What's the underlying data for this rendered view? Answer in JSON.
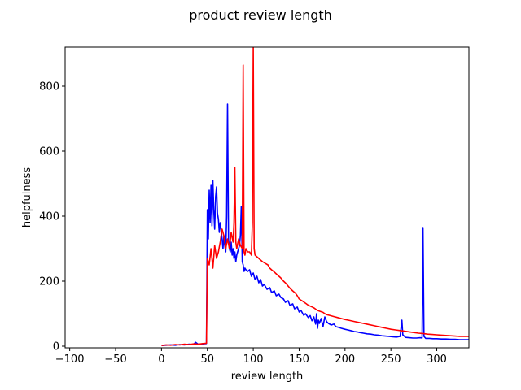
{
  "chart_data": {
    "type": "line",
    "title": "product review length",
    "xlabel": "review length",
    "ylabel": "helpfulness",
    "xlim": [
      -105,
      335
    ],
    "ylim": [
      -5,
      920
    ],
    "xticks": [
      -100,
      -50,
      0,
      50,
      100,
      150,
      200,
      250,
      300
    ],
    "yticks": [
      0,
      200,
      400,
      600,
      800
    ],
    "grid": false,
    "series": [
      {
        "color": "#0000ff",
        "points": [
          [
            0,
            2
          ],
          [
            5,
            3
          ],
          [
            10,
            4
          ],
          [
            15,
            3
          ],
          [
            20,
            5
          ],
          [
            25,
            4
          ],
          [
            30,
            6
          ],
          [
            35,
            5
          ],
          [
            37,
            12
          ],
          [
            40,
            6
          ],
          [
            45,
            7
          ],
          [
            49,
            8
          ],
          [
            50,
            420
          ],
          [
            51,
            330
          ],
          [
            52,
            480
          ],
          [
            53,
            380
          ],
          [
            54,
            495
          ],
          [
            55,
            370
          ],
          [
            56,
            510
          ],
          [
            57,
            420
          ],
          [
            58,
            360
          ],
          [
            59,
            460
          ],
          [
            60,
            490
          ],
          [
            61,
            410
          ],
          [
            62,
            390
          ],
          [
            63,
            350
          ],
          [
            64,
            380
          ],
          [
            65,
            360
          ],
          [
            66,
            330
          ],
          [
            67,
            300
          ],
          [
            68,
            340
          ],
          [
            69,
            310
          ],
          [
            70,
            290
          ],
          [
            71,
            400
          ],
          [
            72,
            745
          ],
          [
            73,
            330
          ],
          [
            74,
            300
          ],
          [
            75,
            290
          ],
          [
            76,
            320
          ],
          [
            77,
            280
          ],
          [
            78,
            300
          ],
          [
            79,
            270
          ],
          [
            80,
            290
          ],
          [
            81,
            260
          ],
          [
            82,
            280
          ],
          [
            83,
            290
          ],
          [
            84,
            300
          ],
          [
            85,
            310
          ],
          [
            86,
            340
          ],
          [
            87,
            430
          ],
          [
            88,
            260
          ],
          [
            89,
            250
          ],
          [
            90,
            230
          ],
          [
            91,
            240
          ],
          [
            92,
            235
          ],
          [
            94,
            230
          ],
          [
            96,
            235
          ],
          [
            98,
            215
          ],
          [
            100,
            225
          ],
          [
            102,
            205
          ],
          [
            104,
            215
          ],
          [
            106,
            195
          ],
          [
            108,
            205
          ],
          [
            110,
            185
          ],
          [
            112,
            190
          ],
          [
            115,
            175
          ],
          [
            118,
            180
          ],
          [
            120,
            165
          ],
          [
            123,
            170
          ],
          [
            125,
            155
          ],
          [
            128,
            160
          ],
          [
            130,
            150
          ],
          [
            133,
            145
          ],
          [
            135,
            135
          ],
          [
            138,
            140
          ],
          [
            140,
            125
          ],
          [
            143,
            130
          ],
          [
            145,
            115
          ],
          [
            148,
            120
          ],
          [
            150,
            105
          ],
          [
            152,
            110
          ],
          [
            155,
            95
          ],
          [
            157,
            100
          ],
          [
            160,
            88
          ],
          [
            162,
            94
          ],
          [
            164,
            78
          ],
          [
            166,
            90
          ],
          [
            168,
            68
          ],
          [
            169,
            100
          ],
          [
            170,
            55
          ],
          [
            171,
            80
          ],
          [
            172,
            70
          ],
          [
            174,
            85
          ],
          [
            176,
            60
          ],
          [
            178,
            90
          ],
          [
            180,
            75
          ],
          [
            182,
            70
          ],
          [
            185,
            65
          ],
          [
            188,
            68
          ],
          [
            190,
            60
          ],
          [
            193,
            58
          ],
          [
            196,
            55
          ],
          [
            200,
            52
          ],
          [
            203,
            50
          ],
          [
            206,
            48
          ],
          [
            210,
            45
          ],
          [
            213,
            44
          ],
          [
            216,
            42
          ],
          [
            220,
            40
          ],
          [
            224,
            38
          ],
          [
            228,
            37
          ],
          [
            232,
            35
          ],
          [
            236,
            34
          ],
          [
            240,
            32
          ],
          [
            244,
            31
          ],
          [
            248,
            30
          ],
          [
            252,
            29
          ],
          [
            256,
            28
          ],
          [
            260,
            30
          ],
          [
            262,
            80
          ],
          [
            263,
            35
          ],
          [
            266,
            27
          ],
          [
            270,
            26
          ],
          [
            274,
            25
          ],
          [
            278,
            25
          ],
          [
            282,
            26
          ],
          [
            284,
            25
          ],
          [
            285,
            365
          ],
          [
            286,
            30
          ],
          [
            288,
            24
          ],
          [
            292,
            24
          ],
          [
            296,
            23
          ],
          [
            300,
            23
          ],
          [
            305,
            22
          ],
          [
            310,
            22
          ],
          [
            315,
            21
          ],
          [
            320,
            21
          ],
          [
            325,
            20
          ],
          [
            330,
            20
          ],
          [
            335,
            20
          ]
        ]
      },
      {
        "color": "#ff0000",
        "points": [
          [
            0,
            2
          ],
          [
            5,
            4
          ],
          [
            10,
            3
          ],
          [
            15,
            5
          ],
          [
            20,
            4
          ],
          [
            25,
            6
          ],
          [
            30,
            5
          ],
          [
            35,
            7
          ],
          [
            40,
            6
          ],
          [
            45,
            8
          ],
          [
            49,
            9
          ],
          [
            50,
            270
          ],
          [
            52,
            250
          ],
          [
            54,
            300
          ],
          [
            56,
            240
          ],
          [
            58,
            310
          ],
          [
            60,
            270
          ],
          [
            62,
            290
          ],
          [
            64,
            320
          ],
          [
            66,
            360
          ],
          [
            68,
            340
          ],
          [
            70,
            300
          ],
          [
            72,
            330
          ],
          [
            74,
            300
          ],
          [
            76,
            350
          ],
          [
            78,
            320
          ],
          [
            79,
            380
          ],
          [
            80,
            550
          ],
          [
            81,
            320
          ],
          [
            82,
            300
          ],
          [
            84,
            330
          ],
          [
            86,
            310
          ],
          [
            88,
            300
          ],
          [
            89,
            865
          ],
          [
            90,
            290
          ],
          [
            91,
            280
          ],
          [
            92,
            300
          ],
          [
            94,
            290
          ],
          [
            96,
            290
          ],
          [
            98,
            280
          ],
          [
            99,
            380
          ],
          [
            100,
            920
          ],
          [
            101,
            300
          ],
          [
            102,
            280
          ],
          [
            104,
            275
          ],
          [
            106,
            270
          ],
          [
            108,
            265
          ],
          [
            110,
            260
          ],
          [
            113,
            255
          ],
          [
            116,
            250
          ],
          [
            118,
            240
          ],
          [
            120,
            235
          ],
          [
            123,
            228
          ],
          [
            126,
            220
          ],
          [
            128,
            215
          ],
          [
            130,
            210
          ],
          [
            133,
            200
          ],
          [
            136,
            192
          ],
          [
            138,
            185
          ],
          [
            140,
            178
          ],
          [
            143,
            170
          ],
          [
            146,
            163
          ],
          [
            148,
            155
          ],
          [
            150,
            145
          ],
          [
            153,
            140
          ],
          [
            156,
            134
          ],
          [
            158,
            130
          ],
          [
            160,
            126
          ],
          [
            163,
            122
          ],
          [
            166,
            118
          ],
          [
            168,
            114
          ],
          [
            170,
            110
          ],
          [
            173,
            107
          ],
          [
            176,
            104
          ],
          [
            178,
            100
          ],
          [
            180,
            97
          ],
          [
            184,
            94
          ],
          [
            188,
            91
          ],
          [
            192,
            88
          ],
          [
            196,
            85
          ],
          [
            200,
            82
          ],
          [
            205,
            79
          ],
          [
            210,
            76
          ],
          [
            215,
            73
          ],
          [
            220,
            70
          ],
          [
            225,
            67
          ],
          [
            230,
            64
          ],
          [
            235,
            61
          ],
          [
            240,
            58
          ],
          [
            245,
            55
          ],
          [
            250,
            52
          ],
          [
            255,
            50
          ],
          [
            260,
            48
          ],
          [
            265,
            46
          ],
          [
            270,
            44
          ],
          [
            275,
            42
          ],
          [
            280,
            40
          ],
          [
            285,
            39
          ],
          [
            290,
            37
          ],
          [
            295,
            36
          ],
          [
            300,
            35
          ],
          [
            305,
            34
          ],
          [
            310,
            33
          ],
          [
            315,
            32
          ],
          [
            320,
            31
          ],
          [
            325,
            30
          ],
          [
            330,
            30
          ],
          [
            335,
            30
          ]
        ]
      }
    ]
  }
}
